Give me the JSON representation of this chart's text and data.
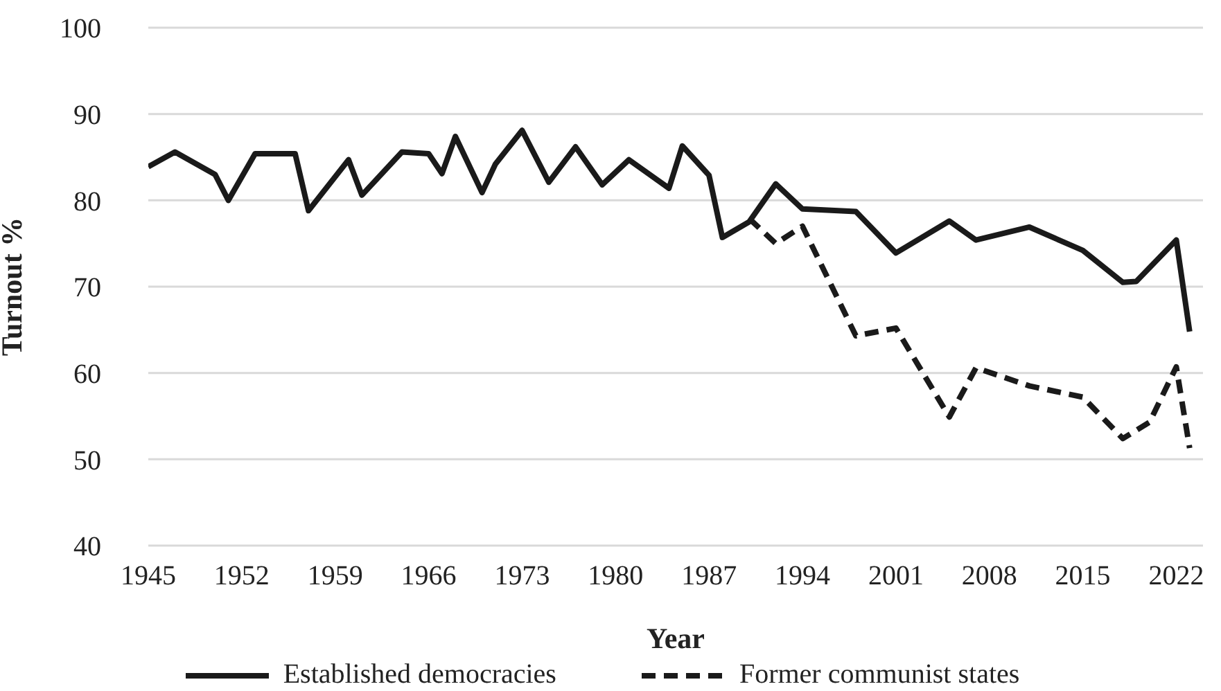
{
  "chart_data": {
    "type": "line",
    "xlabel": "Year",
    "ylabel": "Turnout %",
    "xlim": [
      1945,
      2024
    ],
    "xticks": [
      1945,
      1952,
      1959,
      1966,
      1973,
      1980,
      1987,
      1994,
      2001,
      2008,
      2015,
      2022
    ],
    "ylim": [
      40,
      100
    ],
    "yticks": [
      40,
      50,
      60,
      70,
      80,
      90,
      100
    ],
    "grid": "y",
    "legend": "bottom",
    "marker": "none",
    "series": [
      {
        "name": "Established democracies",
        "color": "#1a1a1a",
        "line_style": "solid",
        "x": [
          1945,
          1947,
          1950,
          1951,
          1953,
          1956,
          1957,
          1960,
          1961,
          1964,
          1966,
          1967,
          1968,
          1970,
          1971,
          1973,
          1975,
          1977,
          1979,
          1981,
          1984,
          1985,
          1987,
          1988,
          1990,
          1992,
          1994,
          1998,
          2001,
          2005,
          2007,
          2011,
          2015,
          2018,
          2019,
          2022,
          2023
        ],
        "values": [
          83.9,
          85.6,
          83.0,
          80.0,
          85.4,
          85.4,
          78.8,
          84.7,
          80.6,
          85.6,
          85.4,
          83.1,
          87.4,
          80.9,
          84.2,
          88.1,
          82.1,
          86.2,
          81.8,
          84.7,
          81.4,
          86.3,
          82.9,
          75.7,
          77.5,
          81.9,
          79.0,
          78.7,
          73.9,
          77.6,
          75.4,
          76.9,
          74.2,
          70.5,
          70.6,
          75.4,
          64.8
        ]
      },
      {
        "name": "Former communist states",
        "color": "#1a1a1a",
        "line_style": "dashed",
        "x": [
          1990,
          1992,
          1994,
          1998,
          2001,
          2005,
          2007,
          2011,
          2015,
          2018,
          2020,
          2022,
          2023
        ],
        "values": [
          77.9,
          75.0,
          77.0,
          64.3,
          65.2,
          54.9,
          60.6,
          58.5,
          57.2,
          52.4,
          54.3,
          60.7,
          51.3
        ]
      }
    ]
  }
}
